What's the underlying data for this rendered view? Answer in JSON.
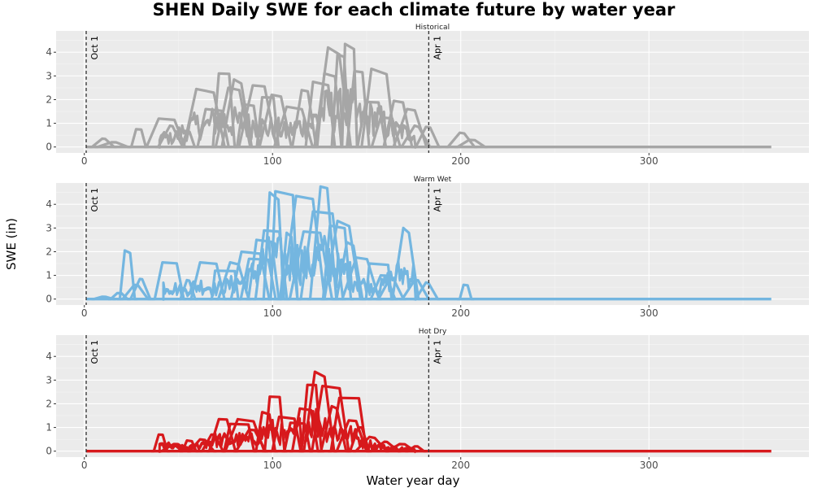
{
  "chart_data": {
    "type": "line",
    "title": "SHEN Daily SWE for each climate future by water year",
    "xlabel": "Water year day",
    "ylabel": "SWE (in)",
    "xlim": [
      -15,
      385
    ],
    "ylim": [
      -0.25,
      4.9
    ],
    "x_ticks": [
      0,
      100,
      200,
      300
    ],
    "y_ticks": [
      0,
      1,
      2,
      3,
      4
    ],
    "grid": true,
    "markers": [
      {
        "label": "Oct 1",
        "x": 1
      },
      {
        "label": "Apr 1",
        "x": 183
      }
    ],
    "panels": [
      {
        "name": "Historical",
        "color": "#a6a6a6",
        "x_end": 365,
        "peaks": [
          {
            "day": 10,
            "swe": 0.35
          },
          {
            "day": 15,
            "swe": 0.2
          },
          {
            "day": 28,
            "swe": 0.75
          },
          {
            "day": 40,
            "swe": 1.2
          },
          {
            "day": 46,
            "swe": 0.9
          },
          {
            "day": 55,
            "swe": 0.65
          },
          {
            "day": 60,
            "swe": 2.45
          },
          {
            "day": 65,
            "swe": 1.6
          },
          {
            "day": 72,
            "swe": 3.1
          },
          {
            "day": 77,
            "swe": 2.5
          },
          {
            "day": 80,
            "swe": 2.85
          },
          {
            "day": 85,
            "swe": 1.8
          },
          {
            "day": 90,
            "swe": 2.6
          },
          {
            "day": 95,
            "swe": 2.1
          },
          {
            "day": 100,
            "swe": 2.2
          },
          {
            "day": 108,
            "swe": 1.7
          },
          {
            "day": 116,
            "swe": 2.4
          },
          {
            "day": 122,
            "swe": 2.75
          },
          {
            "day": 128,
            "swe": 3.1
          },
          {
            "day": 130,
            "swe": 4.2
          },
          {
            "day": 135,
            "swe": 3.9
          },
          {
            "day": 139,
            "swe": 4.35
          },
          {
            "day": 144,
            "swe": 3.2
          },
          {
            "day": 150,
            "swe": 1.9
          },
          {
            "day": 153,
            "swe": 3.3
          },
          {
            "day": 158,
            "swe": 1.25
          },
          {
            "day": 165,
            "swe": 1.95
          },
          {
            "day": 172,
            "swe": 1.6
          },
          {
            "day": 176,
            "swe": 0.9
          },
          {
            "day": 182,
            "swe": 0.85
          },
          {
            "day": 200,
            "swe": 0.6
          },
          {
            "day": 205,
            "swe": 0.3
          }
        ]
      },
      {
        "name": "Warm Wet",
        "color": "#74b6e0",
        "x_end": 365,
        "peaks": [
          {
            "day": 10,
            "swe": 0.1
          },
          {
            "day": 18,
            "swe": 0.25
          },
          {
            "day": 22,
            "swe": 2.05
          },
          {
            "day": 27,
            "swe": 0.6
          },
          {
            "day": 30,
            "swe": 0.85
          },
          {
            "day": 42,
            "swe": 1.55
          },
          {
            "day": 55,
            "swe": 0.8
          },
          {
            "day": 62,
            "swe": 1.55
          },
          {
            "day": 70,
            "swe": 1.2
          },
          {
            "day": 78,
            "swe": 1.55
          },
          {
            "day": 84,
            "swe": 2.0
          },
          {
            "day": 88,
            "swe": 1.7
          },
          {
            "day": 92,
            "swe": 2.5
          },
          {
            "day": 96,
            "swe": 2.9
          },
          {
            "day": 99,
            "swe": 4.5
          },
          {
            "day": 102,
            "swe": 4.55
          },
          {
            "day": 108,
            "swe": 2.8
          },
          {
            "day": 113,
            "swe": 4.35
          },
          {
            "day": 117,
            "swe": 2.85
          },
          {
            "day": 122,
            "swe": 3.7
          },
          {
            "day": 126,
            "swe": 4.75
          },
          {
            "day": 131,
            "swe": 3.1
          },
          {
            "day": 135,
            "swe": 3.3
          },
          {
            "day": 140,
            "swe": 2.4
          },
          {
            "day": 145,
            "swe": 1.75
          },
          {
            "day": 152,
            "swe": 1.5
          },
          {
            "day": 158,
            "swe": 1.0
          },
          {
            "day": 163,
            "swe": 0.9
          },
          {
            "day": 170,
            "swe": 3.0
          },
          {
            "day": 176,
            "swe": 0.8
          },
          {
            "day": 182,
            "swe": 0.7
          },
          {
            "day": 202,
            "swe": 0.6
          }
        ]
      },
      {
        "name": "Hot Dry",
        "color": "#d7191c",
        "x_end": 365,
        "peaks": [
          {
            "day": 40,
            "swe": 0.7
          },
          {
            "day": 48,
            "swe": 0.3
          },
          {
            "day": 55,
            "swe": 0.45
          },
          {
            "day": 62,
            "swe": 0.5
          },
          {
            "day": 68,
            "swe": 0.7
          },
          {
            "day": 72,
            "swe": 1.35
          },
          {
            "day": 78,
            "swe": 1.15
          },
          {
            "day": 82,
            "swe": 1.35
          },
          {
            "day": 88,
            "swe": 0.9
          },
          {
            "day": 95,
            "swe": 1.65
          },
          {
            "day": 99,
            "swe": 2.3
          },
          {
            "day": 104,
            "swe": 1.45
          },
          {
            "day": 110,
            "swe": 1.2
          },
          {
            "day": 115,
            "swe": 1.8
          },
          {
            "day": 119,
            "swe": 2.8
          },
          {
            "day": 123,
            "swe": 3.35
          },
          {
            "day": 127,
            "swe": 2.75
          },
          {
            "day": 132,
            "swe": 1.9
          },
          {
            "day": 136,
            "swe": 2.25
          },
          {
            "day": 141,
            "swe": 1.3
          },
          {
            "day": 146,
            "swe": 1.0
          },
          {
            "day": 152,
            "swe": 0.6
          },
          {
            "day": 160,
            "swe": 0.4
          },
          {
            "day": 168,
            "swe": 0.3
          },
          {
            "day": 176,
            "swe": 0.2
          }
        ]
      }
    ]
  }
}
